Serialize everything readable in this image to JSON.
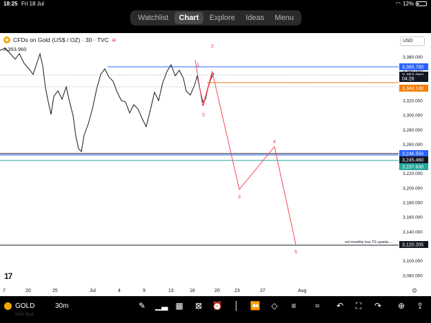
{
  "status": {
    "time": "18:25",
    "date": "Fri 18 Jul",
    "battery": "12%"
  },
  "nav": {
    "tabs": [
      "Watchlist",
      "Chart",
      "Explore",
      "Ideas",
      "Menu"
    ],
    "active": "Chart"
  },
  "chart": {
    "symbol_title": "CFDs on Gold (US$ / OZ) · 30 · TVC",
    "current_price": "3,353.960",
    "currency": "USD",
    "y_ticks": [
      "3,380.000",
      "3,360.000",
      "3,340.000",
      "3,320.000",
      "3,300.000",
      "3,280.000",
      "3,260.000",
      "3,240.000",
      "3,220.000",
      "3,200.000",
      "3,180.000",
      "3,160.000",
      "3,140.000",
      "3,120.000",
      "3,100.000",
      "3,080.000"
    ],
    "x_ticks": [
      "7",
      "20",
      "25",
      "Jul",
      "4",
      "9",
      "13",
      "16",
      "20",
      "23",
      "27",
      "Aug"
    ],
    "price_tags": [
      {
        "label": "3,365.700",
        "color": "#2962ff"
      },
      {
        "label": "3,353.960",
        "color": "#131722"
      },
      {
        "label": "04:28",
        "color": "#131722"
      },
      {
        "label": "3,344.140",
        "color": "#f57c00"
      },
      {
        "label": "3,246.550",
        "color": "#2962ff"
      },
      {
        "label": "3,245.460",
        "color": "#131722"
      },
      {
        "label": "3,237.630",
        "color": "#26a69a"
      },
      {
        "label": "3,120.205",
        "color": "#131722"
      }
    ],
    "wave_labels": [
      "1",
      "2",
      "3",
      "4",
      "5",
      "5"
    ],
    "annotation": "ssl monthly low TS upside..."
  },
  "bottom": {
    "symbol": "GOLD",
    "symbol_sub": "Gold Spot",
    "interval": "30m",
    "tool_icons": [
      "pencil-icon",
      "chart-type-icon",
      "indicators-icon",
      "compare-icon",
      "alert-icon",
      "replay-icon",
      "layers-icon",
      "settings-sliders-icon",
      "drawing-icon",
      "undo-icon",
      "fullscreen-icon",
      "redo-icon",
      "add-icon",
      "share-icon"
    ]
  }
}
